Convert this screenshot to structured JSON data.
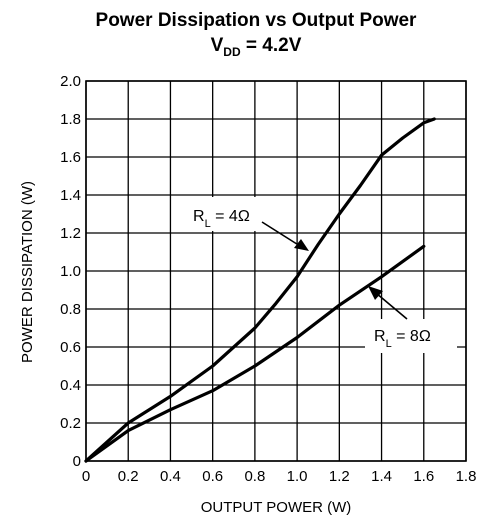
{
  "chart_data": {
    "type": "line",
    "title": "Power Dissipation vs Output Power",
    "subtitle": {
      "prefix": "V",
      "subscript": "DD",
      "suffix": " = 4.2V"
    },
    "xlabel": "OUTPUT POWER (W)",
    "ylabel": "POWER DISSIPATION (W)",
    "xlim": [
      0,
      1.8
    ],
    "ylim": [
      0,
      2.0
    ],
    "x_ticks": [
      0,
      0.2,
      0.4,
      0.6,
      0.8,
      1.0,
      1.2,
      1.4,
      1.6,
      1.8
    ],
    "x_tick_labels": [
      "0",
      "0.2",
      "0.4",
      "0.6",
      "0.8",
      "1.0",
      "1.2",
      "1.4",
      "1.6",
      "1.8"
    ],
    "y_ticks": [
      0,
      0.2,
      0.4,
      0.6,
      0.8,
      1.0,
      1.2,
      1.4,
      1.6,
      1.8,
      2.0
    ],
    "y_tick_labels": [
      "0",
      "0.2",
      "0.4",
      "0.6",
      "0.8",
      "1.0",
      "1.2",
      "1.4",
      "1.6",
      "1.8",
      "2.0"
    ],
    "grid": true,
    "legend": "none",
    "series": [
      {
        "label": {
          "prefix": "R",
          "subscript": "L",
          "suffix": " = 4Ω"
        },
        "x": [
          0,
          0.2,
          0.4,
          0.6,
          0.8,
          0.9,
          1.0,
          1.1,
          1.2,
          1.3,
          1.4,
          1.5,
          1.6,
          1.65
        ],
        "y": [
          0,
          0.2,
          0.34,
          0.5,
          0.7,
          0.83,
          0.97,
          1.14,
          1.3,
          1.45,
          1.61,
          1.7,
          1.78,
          1.8
        ]
      },
      {
        "label": {
          "prefix": "R",
          "subscript": "L",
          "suffix": " = 8Ω"
        },
        "x": [
          0,
          0.2,
          0.4,
          0.6,
          0.8,
          1.0,
          1.2,
          1.4,
          1.6
        ],
        "y": [
          0,
          0.16,
          0.27,
          0.37,
          0.5,
          0.65,
          0.82,
          0.97,
          1.13
        ]
      }
    ]
  }
}
